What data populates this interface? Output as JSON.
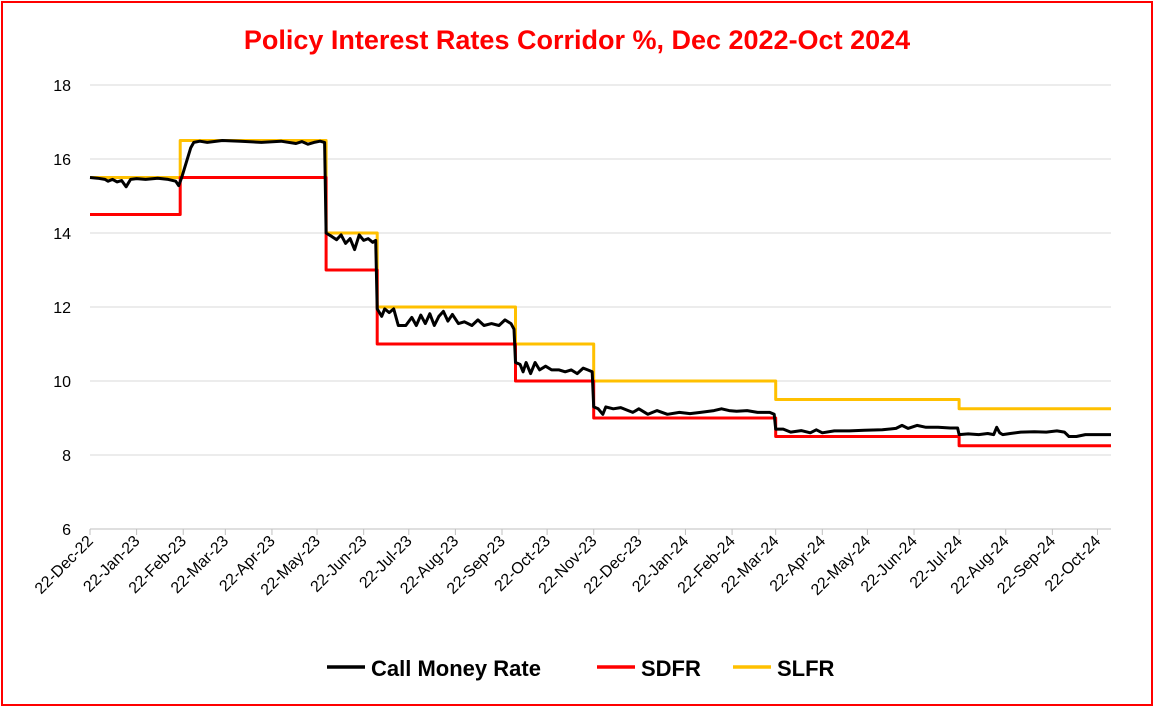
{
  "chart_data": {
    "type": "line",
    "title": "Policy Interest Rates Corridor %,  Dec 2022-Oct 2024",
    "xlabel": "",
    "ylabel": "",
    "ylim": [
      6,
      18
    ],
    "yticks": [
      6,
      8,
      10,
      12,
      14,
      16,
      18
    ],
    "xlim": [
      "2022-12-22",
      "2024-10-31"
    ],
    "x_tick_labels": [
      "22-Dec-22",
      "22-Jan-23",
      "22-Feb-23",
      "22-Mar-23",
      "22-Apr-23",
      "22-May-23",
      "22-Jun-23",
      "22-Jul-23",
      "22-Aug-23",
      "22-Sep-23",
      "22-Oct-23",
      "22-Nov-23",
      "22-Dec-23",
      "22-Jan-24",
      "22-Feb-24",
      "22-Mar-24",
      "22-Apr-24",
      "22-May-24",
      "22-Jun-24",
      "22-Jul-24",
      "22-Aug-24",
      "22-Sep-24",
      "22-Oct-24"
    ],
    "x_tick_dates": [
      "2022-12-22",
      "2023-01-22",
      "2023-02-22",
      "2023-03-22",
      "2023-04-22",
      "2023-05-22",
      "2023-06-22",
      "2023-07-22",
      "2023-08-22",
      "2023-09-22",
      "2023-10-22",
      "2023-11-22",
      "2023-12-22",
      "2024-01-22",
      "2024-02-22",
      "2024-03-22",
      "2024-04-22",
      "2024-05-22",
      "2024-06-22",
      "2024-07-22",
      "2024-08-22",
      "2024-09-22",
      "2024-10-22"
    ],
    "grid": true,
    "legend_position": "bottom",
    "series": [
      {
        "name": "Call Money Rate",
        "color": "#000000",
        "points": [
          [
            "2022-12-22",
            15.5
          ],
          [
            "2022-12-27",
            15.48
          ],
          [
            "2023-01-01",
            15.45
          ],
          [
            "2023-01-03",
            15.4
          ],
          [
            "2023-01-06",
            15.45
          ],
          [
            "2023-01-09",
            15.38
          ],
          [
            "2023-01-12",
            15.42
          ],
          [
            "2023-01-15",
            15.25
          ],
          [
            "2023-01-18",
            15.45
          ],
          [
            "2023-01-22",
            15.47
          ],
          [
            "2023-01-28",
            15.45
          ],
          [
            "2023-02-05",
            15.48
          ],
          [
            "2023-02-12",
            15.45
          ],
          [
            "2023-02-17",
            15.4
          ],
          [
            "2023-02-19",
            15.28
          ],
          [
            "2023-02-21",
            15.5
          ],
          [
            "2023-02-24",
            15.9
          ],
          [
            "2023-02-27",
            16.3
          ],
          [
            "2023-03-01",
            16.45
          ],
          [
            "2023-03-05",
            16.48
          ],
          [
            "2023-03-10",
            16.45
          ],
          [
            "2023-03-20",
            16.5
          ],
          [
            "2023-04-01",
            16.48
          ],
          [
            "2023-04-15",
            16.45
          ],
          [
            "2023-04-28",
            16.48
          ],
          [
            "2023-05-08",
            16.42
          ],
          [
            "2023-05-12",
            16.47
          ],
          [
            "2023-05-16",
            16.4
          ],
          [
            "2023-05-20",
            16.45
          ],
          [
            "2023-05-24",
            16.48
          ],
          [
            "2023-05-27",
            16.45
          ],
          [
            "2023-05-28",
            14.0
          ],
          [
            "2023-06-01",
            13.9
          ],
          [
            "2023-06-04",
            13.82
          ],
          [
            "2023-06-07",
            13.95
          ],
          [
            "2023-06-10",
            13.72
          ],
          [
            "2023-06-13",
            13.85
          ],
          [
            "2023-06-16",
            13.55
          ],
          [
            "2023-06-19",
            13.95
          ],
          [
            "2023-06-22",
            13.8
          ],
          [
            "2023-06-25",
            13.85
          ],
          [
            "2023-06-28",
            13.75
          ],
          [
            "2023-06-30",
            13.8
          ],
          [
            "2023-07-01",
            11.95
          ],
          [
            "2023-07-04",
            11.75
          ],
          [
            "2023-07-06",
            11.95
          ],
          [
            "2023-07-09",
            11.85
          ],
          [
            "2023-07-12",
            11.95
          ],
          [
            "2023-07-15",
            11.5
          ],
          [
            "2023-07-20",
            11.5
          ],
          [
            "2023-07-24",
            11.72
          ],
          [
            "2023-07-27",
            11.5
          ],
          [
            "2023-07-30",
            11.78
          ],
          [
            "2023-08-02",
            11.55
          ],
          [
            "2023-08-05",
            11.82
          ],
          [
            "2023-08-08",
            11.5
          ],
          [
            "2023-08-11",
            11.75
          ],
          [
            "2023-08-14",
            11.88
          ],
          [
            "2023-08-17",
            11.62
          ],
          [
            "2023-08-20",
            11.8
          ],
          [
            "2023-08-24",
            11.55
          ],
          [
            "2023-08-28",
            11.6
          ],
          [
            "2023-09-02",
            11.5
          ],
          [
            "2023-09-06",
            11.65
          ],
          [
            "2023-09-10",
            11.5
          ],
          [
            "2023-09-15",
            11.55
          ],
          [
            "2023-09-20",
            11.5
          ],
          [
            "2023-09-24",
            11.65
          ],
          [
            "2023-09-28",
            11.55
          ],
          [
            "2023-09-30",
            11.4
          ],
          [
            "2023-10-01",
            10.5
          ],
          [
            "2023-10-04",
            10.45
          ],
          [
            "2023-10-06",
            10.25
          ],
          [
            "2023-10-08",
            10.5
          ],
          [
            "2023-10-11",
            10.2
          ],
          [
            "2023-10-14",
            10.5
          ],
          [
            "2023-10-17",
            10.3
          ],
          [
            "2023-10-21",
            10.4
          ],
          [
            "2023-10-25",
            10.3
          ],
          [
            "2023-10-30",
            10.3
          ],
          [
            "2023-11-03",
            10.25
          ],
          [
            "2023-11-07",
            10.3
          ],
          [
            "2023-11-11",
            10.2
          ],
          [
            "2023-11-15",
            10.35
          ],
          [
            "2023-11-18",
            10.3
          ],
          [
            "2023-11-21",
            10.25
          ],
          [
            "2023-11-22",
            9.3
          ],
          [
            "2023-11-25",
            9.25
          ],
          [
            "2023-11-28",
            9.1
          ],
          [
            "2023-11-30",
            9.3
          ],
          [
            "2023-12-05",
            9.25
          ],
          [
            "2023-12-10",
            9.28
          ],
          [
            "2023-12-15",
            9.2
          ],
          [
            "2023-12-18",
            9.15
          ],
          [
            "2023-12-22",
            9.25
          ],
          [
            "2023-12-28",
            9.1
          ],
          [
            "2024-01-03",
            9.2
          ],
          [
            "2024-01-10",
            9.1
          ],
          [
            "2024-01-18",
            9.15
          ],
          [
            "2024-01-25",
            9.12
          ],
          [
            "2024-02-01",
            9.15
          ],
          [
            "2024-02-10",
            9.2
          ],
          [
            "2024-02-15",
            9.25
          ],
          [
            "2024-02-20",
            9.2
          ],
          [
            "2024-02-25",
            9.18
          ],
          [
            "2024-03-03",
            9.2
          ],
          [
            "2024-03-10",
            9.15
          ],
          [
            "2024-03-18",
            9.15
          ],
          [
            "2024-03-21",
            9.1
          ],
          [
            "2024-03-22",
            8.7
          ],
          [
            "2024-03-27",
            8.7
          ],
          [
            "2024-04-01",
            8.62
          ],
          [
            "2024-04-08",
            8.66
          ],
          [
            "2024-04-14",
            8.6
          ],
          [
            "2024-04-18",
            8.68
          ],
          [
            "2024-04-22",
            8.6
          ],
          [
            "2024-04-30",
            8.65
          ],
          [
            "2024-05-10",
            8.65
          ],
          [
            "2024-05-20",
            8.67
          ],
          [
            "2024-06-01",
            8.68
          ],
          [
            "2024-06-10",
            8.72
          ],
          [
            "2024-06-14",
            8.8
          ],
          [
            "2024-06-18",
            8.72
          ],
          [
            "2024-06-24",
            8.8
          ],
          [
            "2024-06-30",
            8.75
          ],
          [
            "2024-07-08",
            8.75
          ],
          [
            "2024-07-16",
            8.73
          ],
          [
            "2024-07-21",
            8.73
          ],
          [
            "2024-07-22",
            8.55
          ],
          [
            "2024-07-28",
            8.57
          ],
          [
            "2024-08-04",
            8.55
          ],
          [
            "2024-08-10",
            8.58
          ],
          [
            "2024-08-14",
            8.55
          ],
          [
            "2024-08-16",
            8.75
          ],
          [
            "2024-08-18",
            8.6
          ],
          [
            "2024-08-20",
            8.55
          ],
          [
            "2024-08-25",
            8.58
          ],
          [
            "2024-09-01",
            8.62
          ],
          [
            "2024-09-10",
            8.63
          ],
          [
            "2024-09-18",
            8.62
          ],
          [
            "2024-09-25",
            8.65
          ],
          [
            "2024-09-30",
            8.62
          ],
          [
            "2024-10-03",
            8.5
          ],
          [
            "2024-10-08",
            8.5
          ],
          [
            "2024-10-14",
            8.55
          ],
          [
            "2024-10-20",
            8.55
          ],
          [
            "2024-10-25",
            8.55
          ],
          [
            "2024-10-31",
            8.55
          ]
        ]
      },
      {
        "name": "SDFR",
        "color": "#ff0000",
        "step": true,
        "points": [
          [
            "2022-12-22",
            14.5
          ],
          [
            "2023-02-20",
            15.5
          ],
          [
            "2023-05-28",
            13.0
          ],
          [
            "2023-07-01",
            11.0
          ],
          [
            "2023-10-01",
            10.0
          ],
          [
            "2023-11-22",
            9.0
          ],
          [
            "2024-03-22",
            8.5
          ],
          [
            "2024-07-22",
            8.25
          ],
          [
            "2024-10-31",
            8.25
          ]
        ]
      },
      {
        "name": "SLFR",
        "color": "#ffc000",
        "step": true,
        "points": [
          [
            "2022-12-22",
            15.5
          ],
          [
            "2023-02-20",
            16.5
          ],
          [
            "2023-05-28",
            14.0
          ],
          [
            "2023-07-01",
            12.0
          ],
          [
            "2023-10-01",
            11.0
          ],
          [
            "2023-11-22",
            10.0
          ],
          [
            "2024-03-22",
            9.5
          ],
          [
            "2024-07-22",
            9.25
          ],
          [
            "2024-10-31",
            9.25
          ]
        ]
      }
    ]
  },
  "colors": {
    "frame": "#ff0000",
    "title": "#ff0000",
    "grid": "#d9d9d9",
    "axis": "#bfbfbf"
  }
}
